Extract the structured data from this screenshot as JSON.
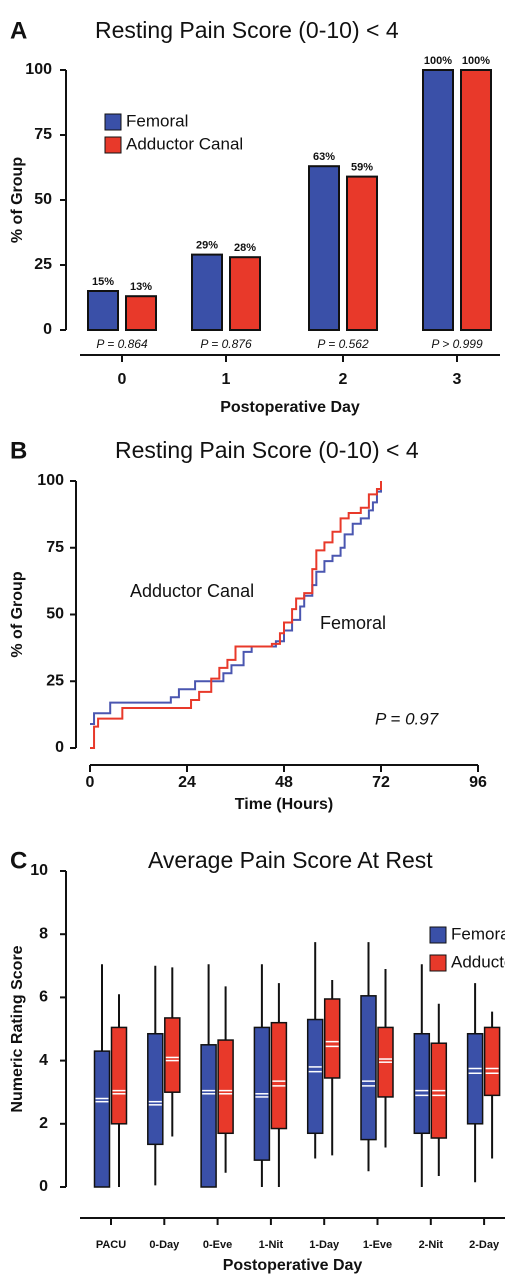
{
  "chart_data": [
    {
      "type": "bar",
      "panel_label": "A",
      "title": "Resting Pain Score (0-10) < 4",
      "x_label": "Postoperative Day",
      "y_label": "% of Group",
      "categories": [
        "0",
        "1",
        "2",
        "3"
      ],
      "series": [
        {
          "name": "Femoral",
          "color": "#3a50a8",
          "label_color": "#3f7fd0",
          "values": [
            15,
            29,
            63,
            100
          ],
          "value_labels": [
            "15%",
            "29%",
            "63%",
            "100%"
          ]
        },
        {
          "name": "Adductor Canal",
          "color": "#e8392a",
          "label_color": "#e8392a",
          "values": [
            13,
            28,
            59,
            100
          ],
          "value_labels": [
            "13%",
            "28%",
            "59%",
            "100%"
          ]
        }
      ],
      "annotations": [
        "P = 0.864",
        "P = 0.876",
        "P = 0.562",
        "P > 0.999"
      ],
      "ylim": [
        0,
        100
      ],
      "yticks": [
        0,
        25,
        50,
        75,
        100
      ],
      "legend": "upper left"
    },
    {
      "type": "step",
      "panel_label": "B",
      "title": "Resting Pain Score (0-10) < 4",
      "x_label": "Time (Hours)",
      "y_label": "% of Group",
      "annotation": "P = 0.97",
      "series": [
        {
          "name": "Femoral",
          "color": "#4a56b0",
          "x": [
            0,
            1,
            5,
            20,
            22,
            26,
            33,
            35,
            38,
            40,
            46,
            48,
            50,
            52,
            53,
            55,
            56,
            58,
            60,
            62,
            63,
            65,
            67,
            69,
            70,
            71,
            72
          ],
          "values": [
            9,
            13,
            17,
            19,
            22,
            25,
            28,
            31,
            36,
            38,
            40,
            44,
            48,
            53,
            57,
            61,
            66,
            70,
            72,
            75,
            80,
            84,
            86,
            89,
            92,
            96,
            100
          ]
        },
        {
          "name": "Adductor Canal",
          "color": "#e8392a",
          "x": [
            0,
            1,
            2,
            8,
            22,
            25,
            27,
            30,
            32,
            34,
            36,
            45,
            47,
            48,
            50,
            51,
            53,
            55,
            56,
            58,
            60,
            62,
            64,
            67,
            69,
            71,
            72
          ],
          "values": [
            0,
            8,
            11,
            15,
            15,
            18,
            21,
            26,
            30,
            33,
            38,
            39,
            43,
            47,
            52,
            56,
            58,
            67,
            74,
            77,
            81,
            86,
            88,
            90,
            95,
            97,
            100
          ]
        }
      ],
      "xlim": [
        0,
        96
      ],
      "xticks": [
        0,
        24,
        48,
        72,
        96
      ],
      "ylim": [
        0,
        100
      ],
      "yticks": [
        0,
        25,
        50,
        75,
        100
      ]
    },
    {
      "type": "box",
      "panel_label": "C",
      "title": "Average Pain Score At Rest",
      "x_label": "Postoperative Day",
      "y_label": "Numeric Rating Score",
      "categories": [
        "PACU",
        "0-Day",
        "0-Eve",
        "1-Nit",
        "1-Day",
        "1-Eve",
        "2-Nit",
        "2-Day"
      ],
      "series": [
        {
          "name": "Femoral",
          "color": "#3a50a8",
          "whisker_low": [
            0,
            0.05,
            0,
            0,
            0.9,
            0.5,
            0,
            0.15
          ],
          "q1": [
            0,
            1.35,
            0,
            0.85,
            1.7,
            1.5,
            1.7,
            2.0
          ],
          "median": [
            2.7,
            2.6,
            2.95,
            2.85,
            3.65,
            3.2,
            2.9,
            3.6
          ],
          "mean": [
            2.8,
            2.7,
            3.05,
            2.95,
            3.8,
            3.35,
            3.05,
            3.75
          ],
          "q3": [
            4.3,
            4.85,
            4.5,
            5.05,
            5.3,
            6.05,
            4.85,
            4.85
          ],
          "whisker_high": [
            7.05,
            7.0,
            7.05,
            7.05,
            7.75,
            7.75,
            7.05,
            6.45
          ]
        },
        {
          "name": "Adductor Canal",
          "color": "#e8392a",
          "whisker_low": [
            0,
            1.6,
            0.45,
            0,
            1.0,
            1.25,
            0.35,
            0.9
          ],
          "q1": [
            2.0,
            3.0,
            1.7,
            1.85,
            3.45,
            2.85,
            1.55,
            2.9
          ],
          "median": [
            2.95,
            4.0,
            2.95,
            3.2,
            4.45,
            3.95,
            2.9,
            3.6
          ],
          "mean": [
            3.05,
            4.1,
            3.05,
            3.35,
            4.6,
            4.05,
            3.05,
            3.75
          ],
          "q3": [
            5.05,
            5.35,
            4.65,
            5.2,
            5.95,
            5.05,
            4.55,
            5.05
          ],
          "whisker_high": [
            6.1,
            6.95,
            6.35,
            6.45,
            6.55,
            6.9,
            5.8,
            5.55
          ]
        }
      ],
      "ylim": [
        0,
        10
      ],
      "yticks": [
        0,
        2,
        4,
        6,
        8,
        10
      ],
      "legend": "upper right"
    }
  ]
}
